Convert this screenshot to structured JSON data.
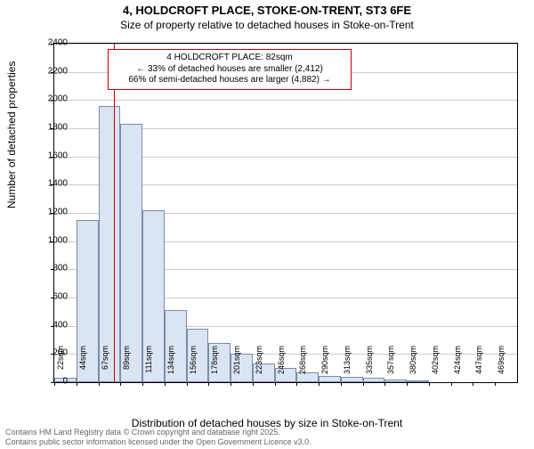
{
  "title1": "4, HOLDCROFT PLACE, STOKE-ON-TRENT, ST3 6FE",
  "title2": "Size of property relative to detached houses in Stoke-on-Trent",
  "chart": {
    "type": "histogram",
    "ylabel": "Number of detached properties",
    "xlabel": "Distribution of detached houses by size in Stoke-on-Trent",
    "ylim": [
      0,
      2400
    ],
    "ytick_step": 200,
    "background_color": "#ffffff",
    "grid_color": "#cccccc",
    "bar_fill": "#dae4f2",
    "bar_border": "#7a8ca8",
    "marker_color": "#cc0000",
    "marker_x_value": 82,
    "x_start": 22,
    "x_step": 22.3,
    "x_bins": 21,
    "x_tick_labels": [
      "22sqm",
      "44sqm",
      "67sqm",
      "89sqm",
      "111sqm",
      "134sqm",
      "156sqm",
      "178sqm",
      "201sqm",
      "223sqm",
      "246sqm",
      "268sqm",
      "290sqm",
      "313sqm",
      "335sqm",
      "357sqm",
      "380sqm",
      "402sqm",
      "424sqm",
      "447sqm",
      "469sqm"
    ],
    "values": [
      30,
      1150,
      1960,
      1830,
      1220,
      510,
      380,
      280,
      200,
      130,
      100,
      70,
      45,
      35,
      30,
      20,
      10,
      5,
      5,
      0,
      0
    ],
    "annotation": {
      "line1": "4 HOLDCROFT PLACE: 82sqm",
      "line2": "← 33% of detached houses are smaller (2,412)",
      "line3": "66% of semi-detached houses are larger (4,882) →"
    }
  },
  "footer1": "Contains HM Land Registry data © Crown copyright and database right 2025.",
  "footer2": "Contains public sector information licensed under the Open Government Licence v3.0."
}
